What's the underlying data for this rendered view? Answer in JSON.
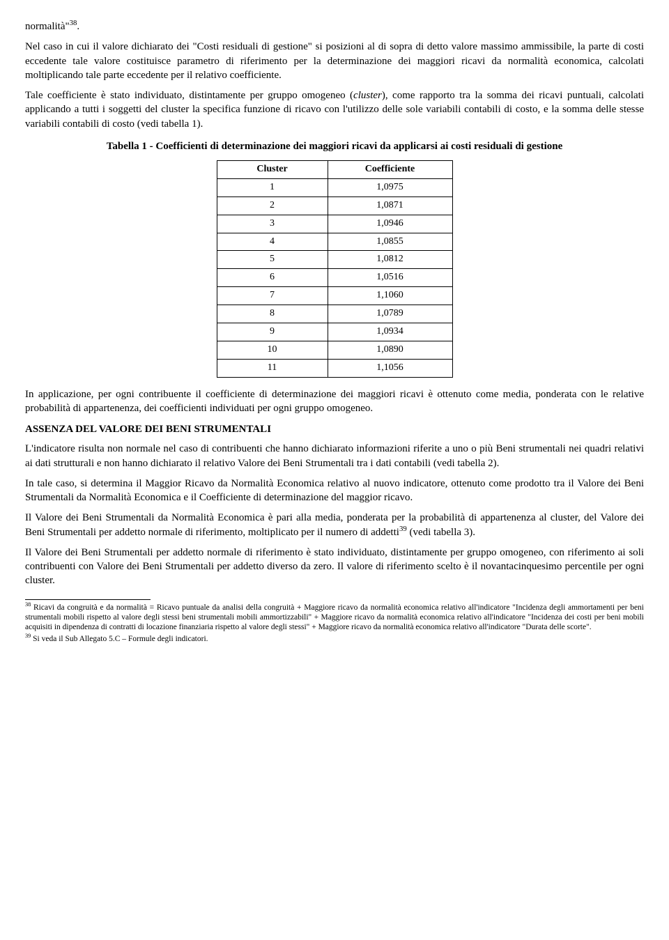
{
  "p_intro_fragment": "normalità\"",
  "sup38": "38",
  "p_intro_trail": ".",
  "p1": "Nel caso in cui il valore dichiarato dei \"Costi residuali di gestione\" si posizioni al di sopra di detto valore massimo ammissibile, la parte di costi eccedente tale valore costituisce parametro di riferimento per la determinazione dei maggiori ricavi da normalità economica, calcolati moltiplicando tale parte eccedente per il relativo coefficiente.",
  "p2_a": "Tale coefficiente è stato individuato, distintamente per gruppo omogeneo (",
  "p2_cluster": "cluster",
  "p2_b": "), come rapporto tra la somma dei ricavi puntuali, calcolati applicando a tutti i soggetti del cluster la specifica funzione di ricavo con l'utilizzo delle sole variabili contabili di costo, e la somma delle stesse variabili contabili di costo (vedi tabella 1).",
  "table1_title": "Tabella 1 - Coefficienti di determinazione dei maggiori ricavi da applicarsi ai costi residuali di gestione",
  "table1": {
    "header_cluster": "Cluster",
    "header_coef": "Coefficiente",
    "rows": [
      {
        "cluster": "1",
        "coef": "1,0975"
      },
      {
        "cluster": "2",
        "coef": "1,0871"
      },
      {
        "cluster": "3",
        "coef": "1,0946"
      },
      {
        "cluster": "4",
        "coef": "1,0855"
      },
      {
        "cluster": "5",
        "coef": "1,0812"
      },
      {
        "cluster": "6",
        "coef": "1,0516"
      },
      {
        "cluster": "7",
        "coef": "1,1060"
      },
      {
        "cluster": "8",
        "coef": "1,0789"
      },
      {
        "cluster": "9",
        "coef": "1,0934"
      },
      {
        "cluster": "10",
        "coef": "1,0890"
      },
      {
        "cluster": "11",
        "coef": "1,1056"
      }
    ]
  },
  "p3": "In applicazione, per ogni contribuente il coefficiente di determinazione dei maggiori ricavi è ottenuto come media, ponderata con le relative probabilità di appartenenza, dei coefficienti individuati per ogni gruppo omogeneo.",
  "h2": "ASSENZA DEL VALORE DEI BENI STRUMENTALI",
  "p4": "L'indicatore risulta non normale nel caso di contribuenti che hanno dichiarato informazioni riferite a uno o più Beni strumentali nei quadri relativi ai dati strutturali e non hanno dichiarato il relativo Valore dei Beni Strumentali tra i dati contabili (vedi tabella 2).",
  "p5": "In tale caso, si determina il Maggior Ricavo da Normalità Economica relativo al nuovo indicatore, ottenuto come prodotto tra il Valore dei Beni Strumentali da Normalità Economica e il Coefficiente di determinazione del maggior ricavo.",
  "p6_a": "Il Valore dei Beni Strumentali da Normalità Economica è pari alla media, ponderata per la probabilità di appartenenza al cluster, del Valore dei Beni Strumentali per addetto normale di riferimento, moltiplicato per il numero di addetti",
  "sup39": "39",
  "p6_b": " (vedi tabella 3).",
  "p7": "Il Valore dei Beni Strumentali per addetto normale di riferimento è stato individuato, distintamente per gruppo omogeneo, con riferimento ai soli contribuenti con Valore dei Beni Strumentali per addetto diverso da zero. Il valore di riferimento scelto è il novantacinquesimo percentile per ogni cluster.",
  "fn38_label": "38",
  "fn38_text": " Ricavi da congruità e da normalità = Ricavo puntuale da analisi della congruità + Maggiore ricavo da normalità economica relativo all'indicatore \"Incidenza degli ammortamenti per beni strumentali mobili rispetto al valore degli stessi beni strumentali mobili ammortizzabili\" + Maggiore ricavo da normalità economica relativo all'indicatore \"Incidenza dei costi per beni mobili acquisiti in dipendenza di contratti di locazione finanziaria rispetto al valore degli stessi\" + Maggiore ricavo da normalità economica relativo all'indicatore \"Durata delle scorte\".",
  "fn39_label": "39",
  "fn39_text": " Si veda il Sub Allegato 5.C – Formule degli indicatori."
}
